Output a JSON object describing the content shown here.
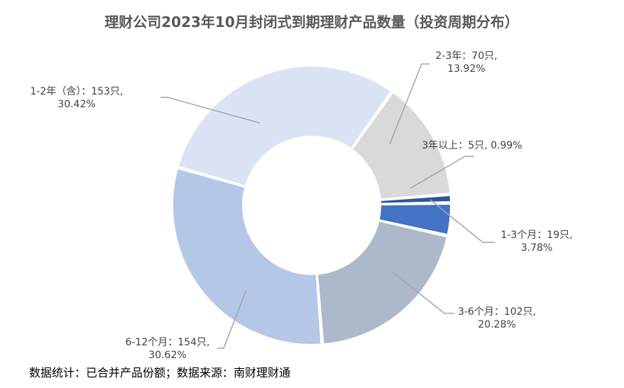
{
  "chart_data": {
    "type": "pie",
    "title": "理财公司2023年10月封闭式到期理财产品数量（投资周期分布）",
    "donut": true,
    "legend": "none",
    "slices": [
      {
        "label": "1-3个月",
        "count": "19只",
        "value": 3.78,
        "percent": "3.78%",
        "color": "#4472C4",
        "text1": "1-3个月：19只,",
        "text2": "3.78%"
      },
      {
        "label": "3-6个月",
        "count": "102只",
        "value": 20.28,
        "percent": "20.28%",
        "color": "#ADB9CA",
        "text1": "3-6个月：102只,",
        "text2": "20.28%"
      },
      {
        "label": "6-12个月",
        "count": "154只",
        "value": 30.62,
        "percent": "30.62%",
        "color": "#B4C7E7",
        "text1": "6-12个月：154只,",
        "text2": "30.62%"
      },
      {
        "label": "1-2年（含）",
        "count": "153只",
        "value": 30.42,
        "percent": "30.42%",
        "color": "#DAE3F3",
        "text1": "1-2年（含）：153只,",
        "text2": "30.42%"
      },
      {
        "label": "2-3年",
        "count": "70只",
        "value": 13.92,
        "percent": "13.92%",
        "color": "#D9D9D9",
        "text1": "2-3年：70只,",
        "text2": "13.92%"
      },
      {
        "label": "3年以上",
        "count": "5只",
        "value": 0.99,
        "percent": "0.99%",
        "color": "#2F5597",
        "text1": "3年以上：5只, 0.99%",
        "text2": ""
      }
    ]
  },
  "footer": "数据统计：已合并产品份额；数据来源：南财理财通"
}
